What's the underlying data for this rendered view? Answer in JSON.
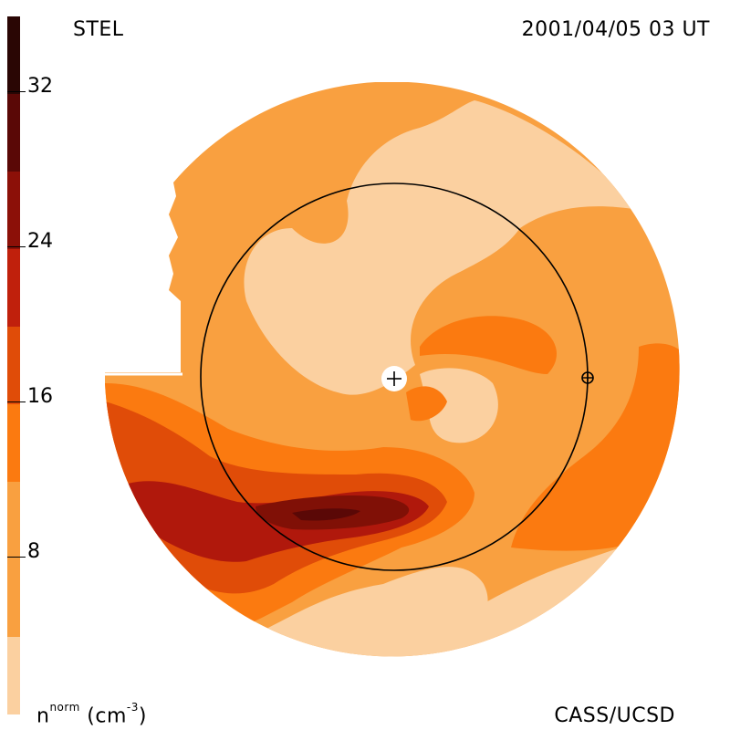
{
  "header": {
    "instrument": "STEL",
    "timestamp": "2001/04/05 03 UT"
  },
  "footer": {
    "unit_base": "n",
    "unit_sup": "norm",
    "unit_rest": " (cm",
    "unit_exp": "-3",
    "unit_close": ")",
    "credit": "CASS/UCSD"
  },
  "colorbar": {
    "ticks": [
      "8",
      "16",
      "24",
      "32"
    ],
    "levels": [
      0,
      4,
      8,
      12,
      16,
      20,
      24,
      28,
      32,
      36
    ],
    "colors": [
      "#fbd0a0",
      "#f9a040",
      "#fb7a10",
      "#e04c08",
      "#c0200c",
      "#a01008",
      "#801006",
      "#5a0806",
      "#2a0604"
    ]
  },
  "legend_icons": {
    "sun": "sun-plus-icon",
    "earth": "earth-icon"
  }
}
